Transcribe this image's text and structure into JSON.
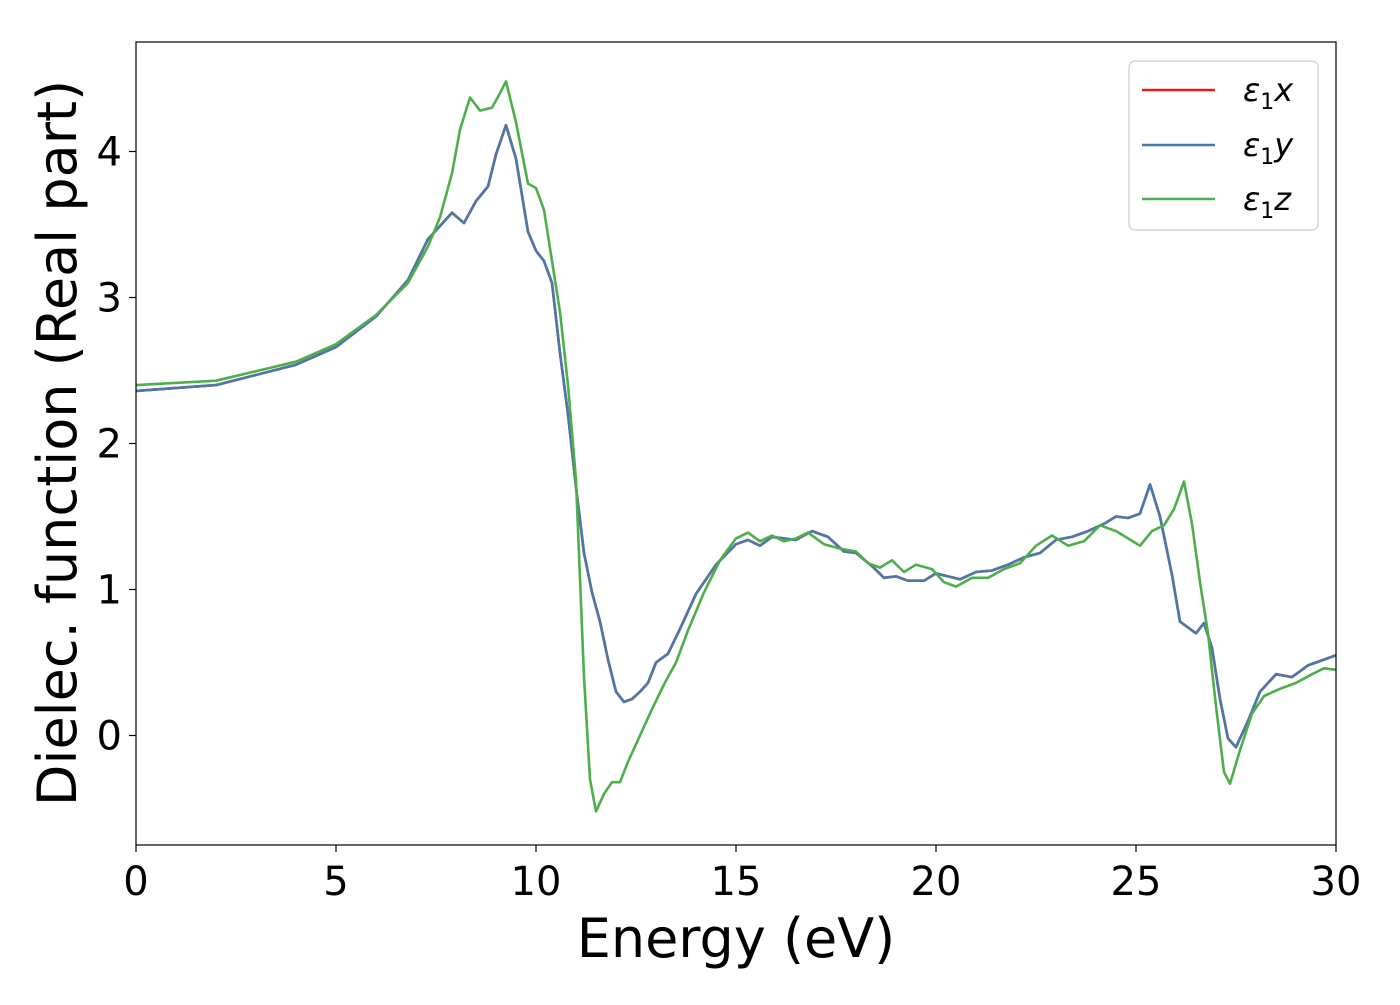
{
  "chart_data": {
    "type": "line",
    "title": "",
    "xlabel": "Energy (eV)",
    "ylabel": "Dielec. function (Real part)",
    "xlim": [
      0,
      30
    ],
    "ylim": [
      -0.75,
      4.75
    ],
    "xticks": [
      0,
      5,
      10,
      15,
      20,
      25,
      30
    ],
    "yticks": [
      0,
      1,
      2,
      3,
      4
    ],
    "xtick_labels": [
      "0",
      "5",
      "10",
      "15",
      "20",
      "25",
      "30"
    ],
    "ytick_labels": [
      "0",
      "1",
      "2",
      "3",
      "4"
    ],
    "grid": false,
    "legend_position": "top-right",
    "series": [
      {
        "name": "ε1x",
        "legend_main": "ε",
        "legend_sub": "1",
        "legend_var": "x",
        "color": "#e41a1c",
        "points": [
          [
            0,
            2.36
          ],
          [
            2,
            2.4
          ],
          [
            4,
            2.54
          ],
          [
            5,
            2.66
          ],
          [
            6,
            2.87
          ],
          [
            6.8,
            3.12
          ],
          [
            7.3,
            3.4
          ],
          [
            7.6,
            3.49
          ],
          [
            7.9,
            3.58
          ],
          [
            8.2,
            3.51
          ],
          [
            8.5,
            3.66
          ],
          [
            8.8,
            3.76
          ],
          [
            9.0,
            3.98
          ],
          [
            9.25,
            4.18
          ],
          [
            9.5,
            3.95
          ],
          [
            9.8,
            3.45
          ],
          [
            10.0,
            3.32
          ],
          [
            10.2,
            3.25
          ],
          [
            10.4,
            3.1
          ],
          [
            10.6,
            2.62
          ],
          [
            10.8,
            2.2
          ],
          [
            11.0,
            1.7
          ],
          [
            11.2,
            1.25
          ],
          [
            11.4,
            0.98
          ],
          [
            11.6,
            0.78
          ],
          [
            11.8,
            0.52
          ],
          [
            12.0,
            0.3
          ],
          [
            12.2,
            0.23
          ],
          [
            12.4,
            0.25
          ],
          [
            12.6,
            0.3
          ],
          [
            12.8,
            0.36
          ],
          [
            13.0,
            0.5
          ],
          [
            13.3,
            0.56
          ],
          [
            13.6,
            0.73
          ],
          [
            14.0,
            0.97
          ],
          [
            14.5,
            1.17
          ],
          [
            15.0,
            1.31
          ],
          [
            15.3,
            1.34
          ],
          [
            15.6,
            1.3
          ],
          [
            15.9,
            1.36
          ],
          [
            16.2,
            1.35
          ],
          [
            16.5,
            1.34
          ],
          [
            16.9,
            1.4
          ],
          [
            17.3,
            1.36
          ],
          [
            17.7,
            1.26
          ],
          [
            18.0,
            1.25
          ],
          [
            18.4,
            1.16
          ],
          [
            18.7,
            1.08
          ],
          [
            19.0,
            1.09
          ],
          [
            19.3,
            1.06
          ],
          [
            19.7,
            1.06
          ],
          [
            20.0,
            1.11
          ],
          [
            20.3,
            1.09
          ],
          [
            20.6,
            1.07
          ],
          [
            21.0,
            1.12
          ],
          [
            21.4,
            1.13
          ],
          [
            21.8,
            1.17
          ],
          [
            22.2,
            1.22
          ],
          [
            22.6,
            1.25
          ],
          [
            23.0,
            1.34
          ],
          [
            23.4,
            1.36
          ],
          [
            23.8,
            1.4
          ],
          [
            24.2,
            1.45
          ],
          [
            24.5,
            1.5
          ],
          [
            24.8,
            1.49
          ],
          [
            25.1,
            1.52
          ],
          [
            25.35,
            1.72
          ],
          [
            25.6,
            1.5
          ],
          [
            25.9,
            1.1
          ],
          [
            26.1,
            0.78
          ],
          [
            26.3,
            0.74
          ],
          [
            26.5,
            0.7
          ],
          [
            26.7,
            0.77
          ],
          [
            26.9,
            0.6
          ],
          [
            27.1,
            0.25
          ],
          [
            27.3,
            -0.02
          ],
          [
            27.5,
            -0.08
          ],
          [
            27.8,
            0.1
          ],
          [
            28.1,
            0.3
          ],
          [
            28.5,
            0.42
          ],
          [
            28.9,
            0.4
          ],
          [
            29.3,
            0.48
          ],
          [
            29.7,
            0.52
          ],
          [
            30,
            0.55
          ]
        ]
      },
      {
        "name": "ε1y",
        "legend_main": "ε",
        "legend_sub": "1",
        "legend_var": "y",
        "color": "#4a78a8",
        "points": [
          [
            0,
            2.36
          ],
          [
            2,
            2.4
          ],
          [
            4,
            2.54
          ],
          [
            5,
            2.66
          ],
          [
            6,
            2.87
          ],
          [
            6.8,
            3.12
          ],
          [
            7.3,
            3.4
          ],
          [
            7.6,
            3.49
          ],
          [
            7.9,
            3.58
          ],
          [
            8.2,
            3.51
          ],
          [
            8.5,
            3.66
          ],
          [
            8.8,
            3.76
          ],
          [
            9.0,
            3.98
          ],
          [
            9.25,
            4.18
          ],
          [
            9.5,
            3.95
          ],
          [
            9.8,
            3.45
          ],
          [
            10.0,
            3.32
          ],
          [
            10.2,
            3.25
          ],
          [
            10.4,
            3.1
          ],
          [
            10.6,
            2.62
          ],
          [
            10.8,
            2.2
          ],
          [
            11.0,
            1.7
          ],
          [
            11.2,
            1.25
          ],
          [
            11.4,
            0.98
          ],
          [
            11.6,
            0.78
          ],
          [
            11.8,
            0.52
          ],
          [
            12.0,
            0.3
          ],
          [
            12.2,
            0.23
          ],
          [
            12.4,
            0.25
          ],
          [
            12.6,
            0.3
          ],
          [
            12.8,
            0.36
          ],
          [
            13.0,
            0.5
          ],
          [
            13.3,
            0.56
          ],
          [
            13.6,
            0.73
          ],
          [
            14.0,
            0.97
          ],
          [
            14.5,
            1.17
          ],
          [
            15.0,
            1.31
          ],
          [
            15.3,
            1.34
          ],
          [
            15.6,
            1.3
          ],
          [
            15.9,
            1.36
          ],
          [
            16.2,
            1.35
          ],
          [
            16.5,
            1.34
          ],
          [
            16.9,
            1.4
          ],
          [
            17.3,
            1.36
          ],
          [
            17.7,
            1.26
          ],
          [
            18.0,
            1.25
          ],
          [
            18.4,
            1.16
          ],
          [
            18.7,
            1.08
          ],
          [
            19.0,
            1.09
          ],
          [
            19.3,
            1.06
          ],
          [
            19.7,
            1.06
          ],
          [
            20.0,
            1.11
          ],
          [
            20.3,
            1.09
          ],
          [
            20.6,
            1.07
          ],
          [
            21.0,
            1.12
          ],
          [
            21.4,
            1.13
          ],
          [
            21.8,
            1.17
          ],
          [
            22.2,
            1.22
          ],
          [
            22.6,
            1.25
          ],
          [
            23.0,
            1.34
          ],
          [
            23.4,
            1.36
          ],
          [
            23.8,
            1.4
          ],
          [
            24.2,
            1.45
          ],
          [
            24.5,
            1.5
          ],
          [
            24.8,
            1.49
          ],
          [
            25.1,
            1.52
          ],
          [
            25.35,
            1.72
          ],
          [
            25.6,
            1.5
          ],
          [
            25.9,
            1.1
          ],
          [
            26.1,
            0.78
          ],
          [
            26.3,
            0.74
          ],
          [
            26.5,
            0.7
          ],
          [
            26.7,
            0.77
          ],
          [
            26.9,
            0.6
          ],
          [
            27.1,
            0.25
          ],
          [
            27.3,
            -0.02
          ],
          [
            27.5,
            -0.08
          ],
          [
            27.8,
            0.1
          ],
          [
            28.1,
            0.3
          ],
          [
            28.5,
            0.42
          ],
          [
            28.9,
            0.4
          ],
          [
            29.3,
            0.48
          ],
          [
            29.7,
            0.52
          ],
          [
            30,
            0.55
          ]
        ]
      },
      {
        "name": "ε1z",
        "legend_main": "ε",
        "legend_sub": "1",
        "legend_var": "z",
        "color": "#4daf4a",
        "points": [
          [
            0,
            2.4
          ],
          [
            2,
            2.43
          ],
          [
            4,
            2.56
          ],
          [
            5,
            2.68
          ],
          [
            6,
            2.88
          ],
          [
            6.8,
            3.1
          ],
          [
            7.3,
            3.35
          ],
          [
            7.6,
            3.55
          ],
          [
            7.9,
            3.85
          ],
          [
            8.1,
            4.15
          ],
          [
            8.35,
            4.37
          ],
          [
            8.6,
            4.28
          ],
          [
            8.9,
            4.3
          ],
          [
            9.1,
            4.4
          ],
          [
            9.25,
            4.48
          ],
          [
            9.5,
            4.2
          ],
          [
            9.8,
            3.78
          ],
          [
            10.0,
            3.75
          ],
          [
            10.2,
            3.6
          ],
          [
            10.4,
            3.25
          ],
          [
            10.6,
            2.9
          ],
          [
            10.8,
            2.4
          ],
          [
            11.0,
            1.75
          ],
          [
            11.2,
            0.4
          ],
          [
            11.35,
            -0.3
          ],
          [
            11.5,
            -0.52
          ],
          [
            11.7,
            -0.4
          ],
          [
            11.9,
            -0.32
          ],
          [
            12.1,
            -0.32
          ],
          [
            12.3,
            -0.18
          ],
          [
            12.6,
            0.0
          ],
          [
            12.9,
            0.18
          ],
          [
            13.2,
            0.35
          ],
          [
            13.5,
            0.5
          ],
          [
            13.8,
            0.72
          ],
          [
            14.2,
            0.98
          ],
          [
            14.6,
            1.2
          ],
          [
            15.0,
            1.35
          ],
          [
            15.3,
            1.39
          ],
          [
            15.6,
            1.33
          ],
          [
            15.9,
            1.37
          ],
          [
            16.2,
            1.33
          ],
          [
            16.5,
            1.35
          ],
          [
            16.8,
            1.39
          ],
          [
            17.2,
            1.31
          ],
          [
            17.6,
            1.28
          ],
          [
            18.0,
            1.26
          ],
          [
            18.3,
            1.18
          ],
          [
            18.6,
            1.15
          ],
          [
            18.9,
            1.2
          ],
          [
            19.2,
            1.12
          ],
          [
            19.5,
            1.17
          ],
          [
            19.9,
            1.14
          ],
          [
            20.2,
            1.05
          ],
          [
            20.5,
            1.02
          ],
          [
            20.9,
            1.08
          ],
          [
            21.3,
            1.08
          ],
          [
            21.7,
            1.14
          ],
          [
            22.1,
            1.18
          ],
          [
            22.5,
            1.3
          ],
          [
            22.9,
            1.37
          ],
          [
            23.3,
            1.3
          ],
          [
            23.7,
            1.33
          ],
          [
            24.1,
            1.44
          ],
          [
            24.5,
            1.4
          ],
          [
            24.8,
            1.35
          ],
          [
            25.1,
            1.3
          ],
          [
            25.4,
            1.4
          ],
          [
            25.7,
            1.44
          ],
          [
            25.95,
            1.55
          ],
          [
            26.2,
            1.74
          ],
          [
            26.4,
            1.45
          ],
          [
            26.6,
            1.05
          ],
          [
            26.8,
            0.7
          ],
          [
            27.0,
            0.2
          ],
          [
            27.2,
            -0.25
          ],
          [
            27.35,
            -0.33
          ],
          [
            27.6,
            -0.1
          ],
          [
            27.9,
            0.15
          ],
          [
            28.2,
            0.27
          ],
          [
            28.6,
            0.32
          ],
          [
            29.0,
            0.36
          ],
          [
            29.4,
            0.42
          ],
          [
            29.7,
            0.46
          ],
          [
            30,
            0.45
          ]
        ]
      }
    ]
  }
}
